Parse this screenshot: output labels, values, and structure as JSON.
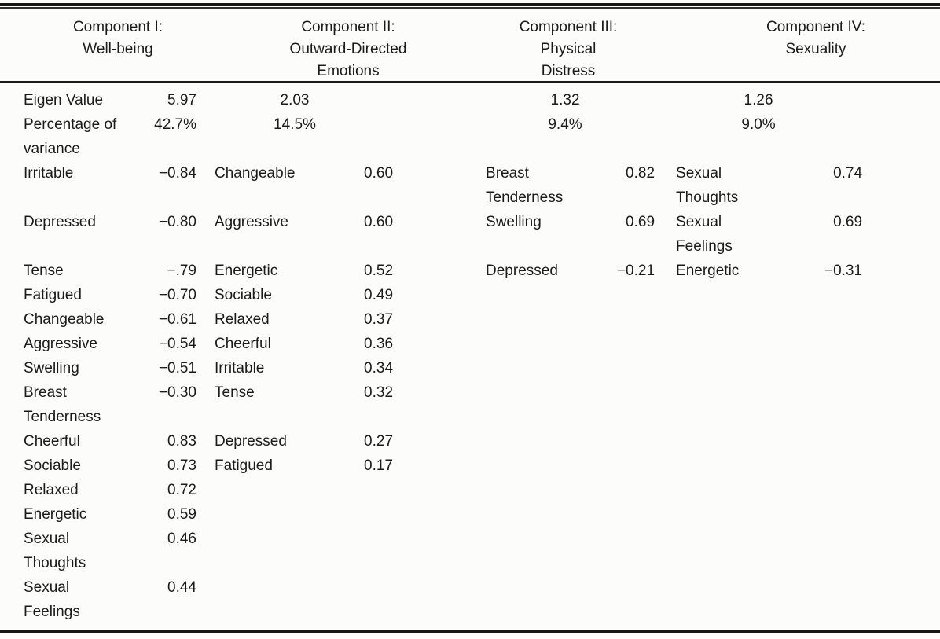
{
  "headings": [
    {
      "lines": [
        "Component I:",
        "Well-being"
      ]
    },
    {
      "lines": [
        "Component II:",
        "Outward-Directed",
        "Emotions"
      ]
    },
    {
      "lines": [
        "Component III:",
        "Physical",
        "Distress"
      ]
    },
    {
      "lines": [
        "Component IV:",
        "Sexuality"
      ]
    }
  ],
  "stats": {
    "eigen_label": "Eigen Value",
    "eigen": [
      "5.97",
      "2.03",
      "1.32",
      "1.26"
    ],
    "pct_label": "Percentage of variance",
    "pct": [
      "42.7%",
      "14.5%",
      "9.4%",
      "9.0%"
    ]
  },
  "body_rows": [
    [
      "Irritable",
      "−0.84",
      "Changeable",
      "0.60",
      "Breast Tenderness",
      "0.82",
      "Sexual Thoughts",
      "0.74"
    ],
    [
      "Depressed",
      "−0.80",
      "Aggressive",
      "0.60",
      "Swelling",
      "0.69",
      "Sexual Feelings",
      "0.69"
    ],
    [
      "Tense",
      "−.79",
      "Energetic",
      "0.52",
      "Depressed",
      "−0.21",
      "Energetic",
      "−0.31"
    ],
    [
      "Fatigued",
      "−0.70",
      "Sociable",
      "0.49",
      "",
      "",
      "",
      ""
    ],
    [
      "Changeable",
      "−0.61",
      "Relaxed",
      "0.37",
      "",
      "",
      "",
      ""
    ],
    [
      "Aggressive",
      "−0.54",
      "Cheerful",
      "0.36",
      "",
      "",
      "",
      ""
    ],
    [
      "Swelling",
      "−0.51",
      "Irritable",
      "0.34",
      "",
      "",
      "",
      ""
    ],
    [
      "Breast Tenderness",
      "−0.30",
      "Tense",
      "0.32",
      "",
      "",
      "",
      ""
    ],
    [
      "Cheerful",
      "0.83",
      "Depressed",
      "0.27",
      "",
      "",
      "",
      ""
    ],
    [
      "Sociable",
      "0.73",
      "Fatigued",
      "0.17",
      "",
      "",
      "",
      ""
    ],
    [
      "Relaxed",
      "0.72",
      "",
      "",
      "",
      "",
      "",
      ""
    ],
    [
      "Energetic",
      "0.59",
      "",
      "",
      "",
      "",
      "",
      ""
    ],
    [
      "Sexual Thoughts",
      "0.46",
      "",
      "",
      "",
      "",
      "",
      ""
    ],
    [
      "Sexual Feelings",
      "0.44",
      "",
      "",
      "",
      "",
      "",
      ""
    ]
  ]
}
